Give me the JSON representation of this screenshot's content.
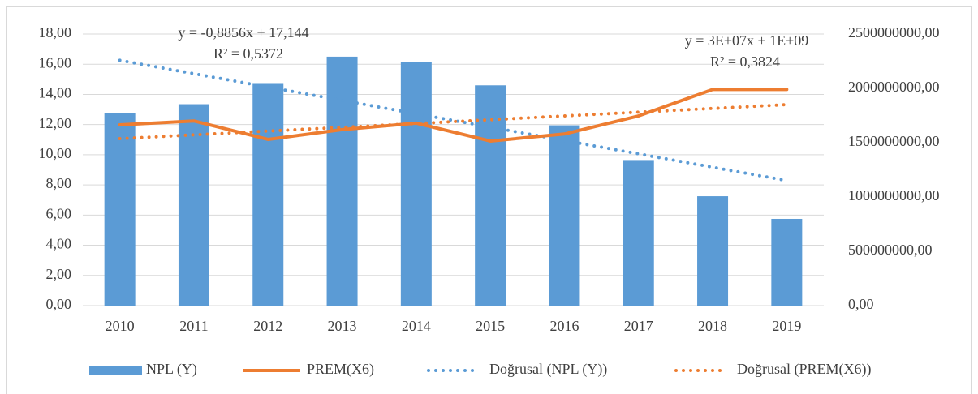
{
  "chart_data": {
    "type": "bar",
    "categories": [
      "2010",
      "2011",
      "2012",
      "2013",
      "2014",
      "2015",
      "2016",
      "2017",
      "2018",
      "2019"
    ],
    "series": [
      {
        "name": "NPL (Y)",
        "color": "#5b9bd5",
        "type": "bar",
        "axis": "y",
        "values": [
          12.75,
          13.35,
          14.75,
          16.5,
          16.15,
          14.6,
          11.95,
          9.65,
          7.25,
          5.75
        ]
      },
      {
        "name": "PREM(X6)",
        "color": "#ed7d31",
        "type": "line",
        "axis": "y2",
        "values": [
          1664000000,
          1700000000,
          1530000000,
          1620000000,
          1680000000,
          1515000000,
          1580000000,
          1746000000,
          1990000000,
          1990000000
        ]
      },
      {
        "name": "Doğrusal (NPL (Y))",
        "color": "#5b9bd5",
        "type": "trend",
        "axis": "y",
        "values": [
          16.258,
          15.373,
          14.487,
          13.602,
          12.716,
          11.83,
          10.945,
          10.059,
          9.174,
          8.288
        ]
      },
      {
        "name": "Doğrusal (PREM(X6))",
        "color": "#ed7d31",
        "type": "trend",
        "axis": "y2",
        "values": [
          1537000000,
          1572000000,
          1607000000,
          1641000000,
          1676000000,
          1711000000,
          1746000000,
          1781000000,
          1815000000,
          1850000000
        ]
      }
    ],
    "annotations": [
      [
        "y = -0,8856x + 17,144",
        "R² = 0,5372"
      ],
      [
        "y = 3E+07x + 1E+09",
        "R² = 0,3824"
      ]
    ],
    "ylim": [
      0,
      18
    ],
    "yticks": [
      {
        "value": 0,
        "label": "0,00"
      },
      {
        "value": 2,
        "label": "2,00"
      },
      {
        "value": 4,
        "label": "4,00"
      },
      {
        "value": 6,
        "label": "6,00"
      },
      {
        "value": 8,
        "label": "8,00"
      },
      {
        "value": 10,
        "label": "10,00"
      },
      {
        "value": 12,
        "label": "12,00"
      },
      {
        "value": 14,
        "label": "14,00"
      },
      {
        "value": 16,
        "label": "16,00"
      },
      {
        "value": 18,
        "label": "18,00"
      }
    ],
    "y2lim": [
      0,
      2500000000
    ],
    "y2ticks": [
      {
        "value": 0,
        "label": "0,00"
      },
      {
        "value": 500000000,
        "label": "500000000,00"
      },
      {
        "value": 1000000000,
        "label": "1000000000,00"
      },
      {
        "value": 1500000000,
        "label": "1500000000,00"
      },
      {
        "value": 2000000000,
        "label": "2000000000,00"
      },
      {
        "value": 2500000000,
        "label": "2500000000,00"
      }
    ],
    "grid": true,
    "legend": "bottom"
  }
}
